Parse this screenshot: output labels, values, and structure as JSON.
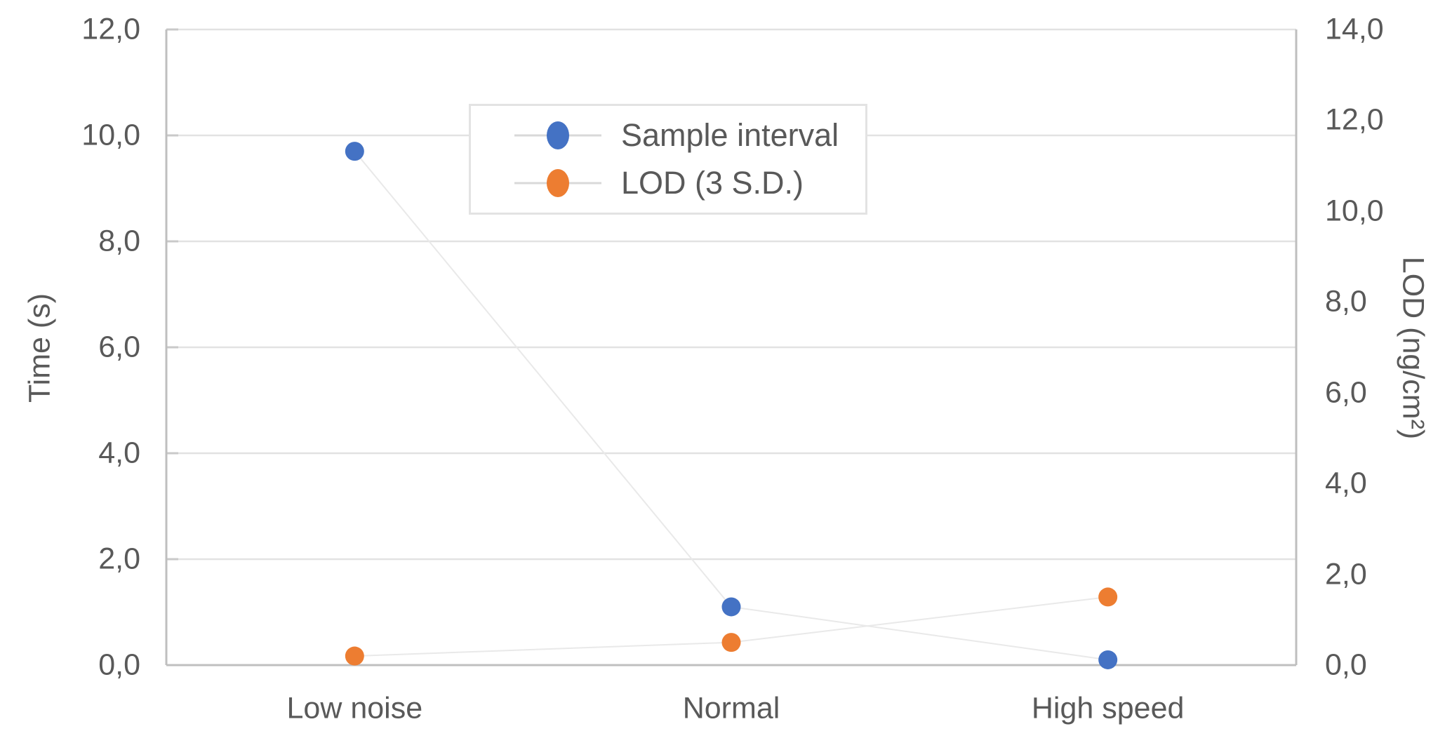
{
  "chart_data": {
    "type": "scatter",
    "connected": true,
    "categories": [
      "Low noise",
      "Normal",
      "High speed"
    ],
    "series": [
      {
        "name": "Sample interval",
        "axis": "left",
        "color": "#4472C4",
        "values": [
          9.7,
          1.1,
          0.1
        ]
      },
      {
        "name": "LOD (3 S.D.)",
        "axis": "right",
        "color": "#ED7D31",
        "values": [
          0.2,
          0.5,
          1.5
        ]
      }
    ],
    "left_axis": {
      "label": "Time (s)",
      "min": 0,
      "max": 12,
      "step": 2,
      "tick_labels": [
        "0,0",
        "2,0",
        "4,0",
        "6,0",
        "8,0",
        "10,0",
        "12,0"
      ]
    },
    "right_axis": {
      "label": "LOD (ng/cm²)",
      "min": 0,
      "max": 14,
      "step": 2,
      "tick_labels": [
        "0,0",
        "2,0",
        "4,0",
        "6,0",
        "8,0",
        "10,0",
        "12,0",
        "14,0"
      ]
    },
    "legend": {
      "position": "top-center",
      "entries": [
        "Sample interval",
        "LOD (3 S.D.)"
      ]
    },
    "grid": true,
    "style": {
      "grid_color": "#E2E2E2",
      "axis_line_color": "#BFBFBF",
      "inner_tick_color": "#C9C9C9",
      "connector_line_color": "#E9E9E9",
      "text_color": "#595959",
      "legend_border_color": "#E3E3E3",
      "marker_line_color": "#D9D9D9",
      "background": "#FFFFFF"
    }
  }
}
